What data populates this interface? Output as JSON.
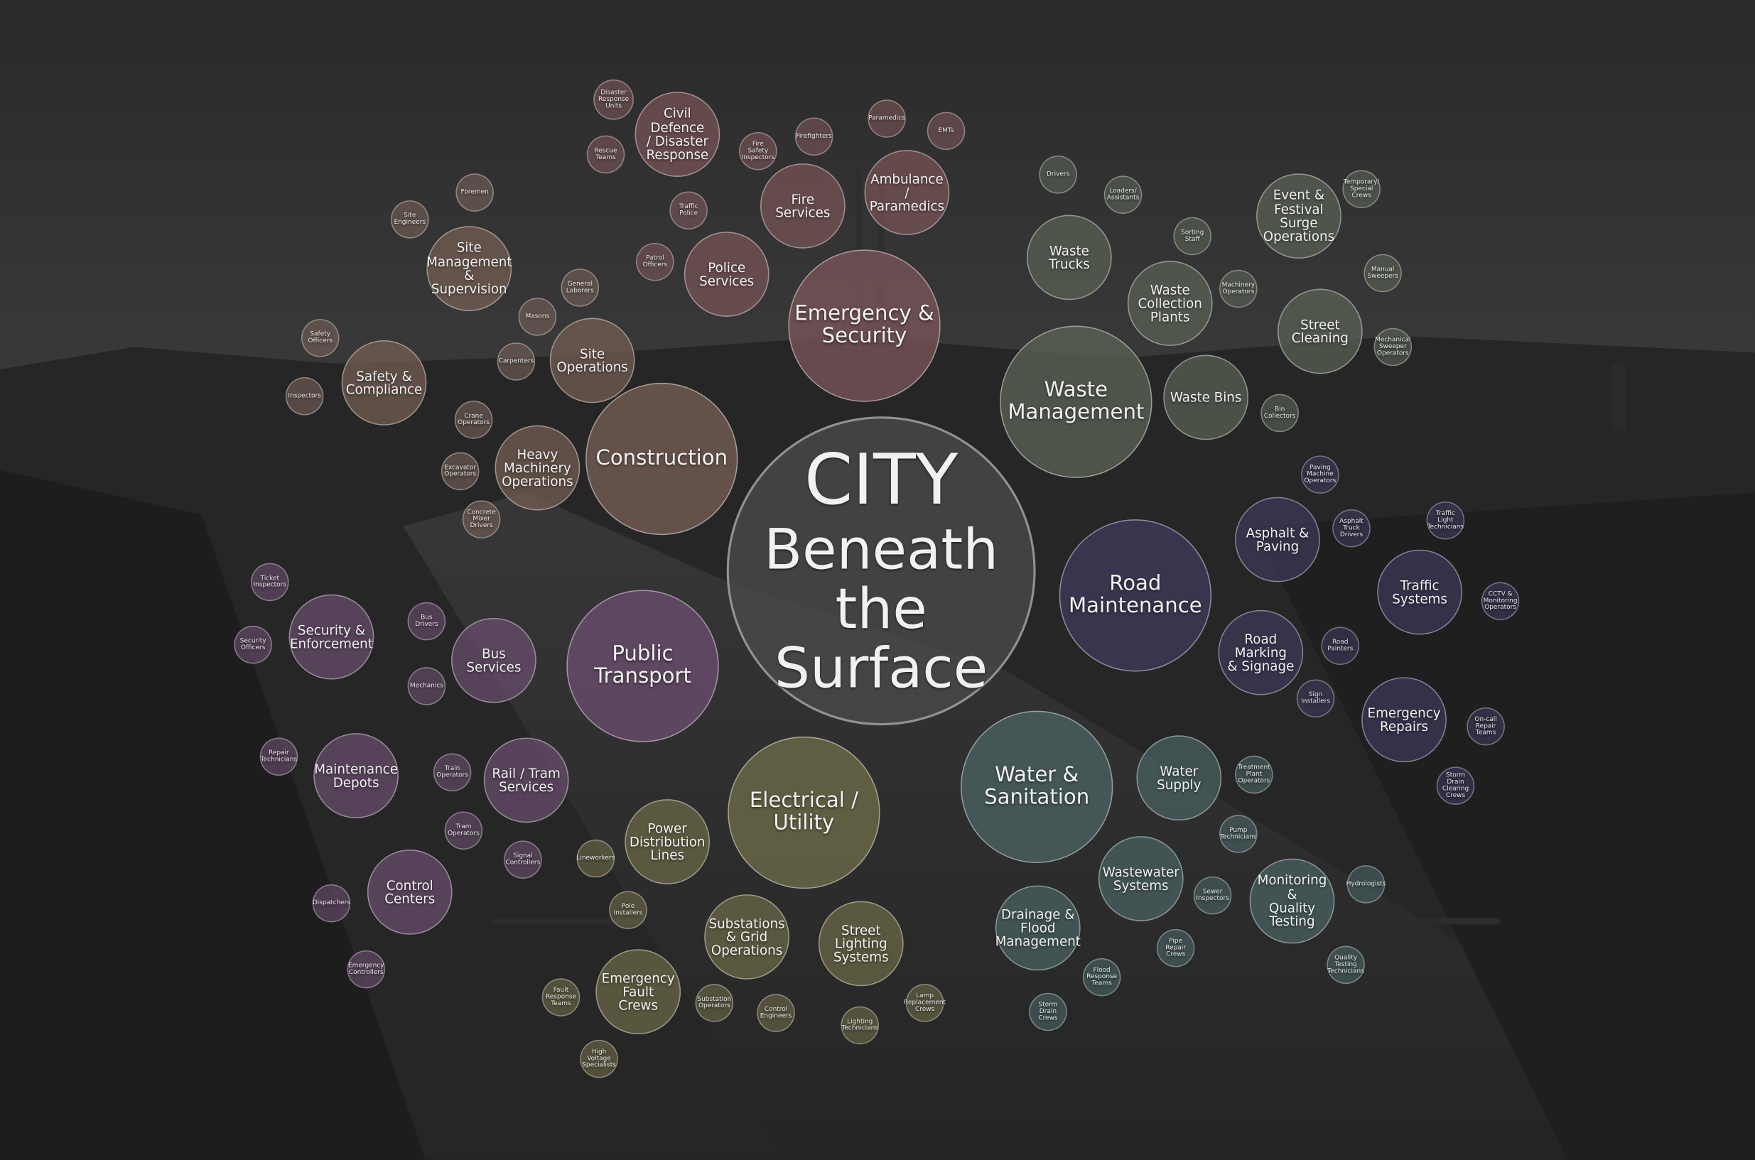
{
  "center": {
    "line1": "CITY",
    "line2": "Beneath the\nSurface"
  },
  "colors": {
    "center": "#4a4a4c",
    "emergency": "#7a5558",
    "waste": "#5b6256",
    "construction": "#765f55",
    "road": "#3d3a5a",
    "transport": "#6a4d6d",
    "electrical": "#6d6a48",
    "water": "#4a6262"
  },
  "categories": [
    {
      "id": "emergency",
      "label": "Emergency &\nSecurity",
      "groups": [
        {
          "label": "Civil Defence\n/ Disaster\nResponse",
          "roles": [
            "Disaster\nResponse\nUnits",
            "Rescue\nTeams"
          ]
        },
        {
          "label": "Fire Services",
          "roles": [
            "Fire Safety\nInspectors",
            "Firefighters"
          ]
        },
        {
          "label": "Ambulance /\nParamedics",
          "roles": [
            "Paramedics",
            "EMTs"
          ]
        },
        {
          "label": "Police Services",
          "roles": [
            "Traffic\nPolice",
            "Patrol\nOfficers"
          ]
        }
      ]
    },
    {
      "id": "waste",
      "label": "Waste\nManagement",
      "groups": [
        {
          "label": "Waste Trucks",
          "roles": [
            "Drivers",
            "Loaders/\nAssistants"
          ]
        },
        {
          "label": "Waste\nCollection\nPlants",
          "roles": [
            "Sorting Staff",
            "Machinery\nOperators"
          ]
        },
        {
          "label": "Event &\nFestival Surge\nOperations",
          "roles": [
            "Temporary/\nSpecial Crews"
          ]
        },
        {
          "label": "Street\nCleaning",
          "roles": [
            "Manual\nSweepers",
            "Mechanical\nSweeper\nOperators"
          ]
        },
        {
          "label": "Waste Bins",
          "roles": [
            "Bin Collectors"
          ]
        }
      ]
    },
    {
      "id": "construction",
      "label": "Construction",
      "groups": [
        {
          "label": "Site\nManagement\n& Supervision",
          "roles": [
            "Foremen",
            "Site\nEngineers"
          ]
        },
        {
          "label": "Site\nOperations",
          "roles": [
            "General\nLaborers",
            "Masons",
            "Carpenters"
          ]
        },
        {
          "label": "Safety &\nCompliance",
          "roles": [
            "Safety\nOfficers",
            "Inspectors"
          ]
        },
        {
          "label": "Heavy\nMachinery\nOperations",
          "roles": [
            "Crane\nOperators",
            "Excavator\nOperators",
            "Concrete\nMixer Drivers"
          ]
        }
      ]
    },
    {
      "id": "road",
      "label": "Road\nMaintenance",
      "groups": [
        {
          "label": "Asphalt &\nPaving",
          "roles": [
            "Paving\nMachine\nOperators",
            "Asphalt Truck\nDrivers"
          ]
        },
        {
          "label": "Traffic\nSystems",
          "roles": [
            "Traffic Light\nTechnicians",
            "CCTV &\nMonitoring\nOperators"
          ]
        },
        {
          "label": "Road Marking\n& Signage",
          "roles": [
            "Road Painters",
            "Sign Installers"
          ]
        },
        {
          "label": "Emergency\nRepairs",
          "roles": [
            "On-call\nRepair Teams",
            "Storm Drain\nClearing\nCrews"
          ]
        }
      ]
    },
    {
      "id": "transport",
      "label": "Public\nTransport",
      "groups": [
        {
          "label": "Security &\nEnforcement",
          "roles": [
            "Ticket\nInspectors",
            "Security\nOfficers"
          ]
        },
        {
          "label": "Bus Services",
          "roles": [
            "Bus Drivers",
            "Mechanics"
          ]
        },
        {
          "label": "Maintenance\nDepots",
          "roles": [
            "Repair\nTechnicians"
          ]
        },
        {
          "label": "Rail / Tram\nServices",
          "roles": [
            "Train\nOperators",
            "Tram\nOperators",
            "Signal\nControllers"
          ]
        },
        {
          "label": "Control\nCenters",
          "roles": [
            "Dispatchers",
            "Emergency\nControllers"
          ]
        }
      ]
    },
    {
      "id": "electrical",
      "label": "Electrical /\nUtility",
      "groups": [
        {
          "label": "Power\nDistribution\nLines",
          "roles": [
            "Lineworkers",
            "Pole Installers"
          ]
        },
        {
          "label": "Substations\n& Grid\nOperations",
          "roles": [
            "Substation\nOperators",
            "Control\nEngineers"
          ]
        },
        {
          "label": "Street\nLighting\nSystems",
          "roles": [
            "Lamp\nReplacement\nCrews",
            "Lighting\nTechnicians"
          ]
        },
        {
          "label": "Emergency\nFault Crews",
          "roles": [
            "Fault\nResponse\nTeams",
            "High Voltage\nSpecialists"
          ]
        }
      ]
    },
    {
      "id": "water",
      "label": "Water &\nSanitation",
      "groups": [
        {
          "label": "Water Supply",
          "roles": [
            "Treatment\nPlant\nOperators",
            "Pump\nTechnicians"
          ]
        },
        {
          "label": "Wastewater\nSystems",
          "roles": [
            "Sewer\nInspectors",
            "Pipe Repair\nCrews"
          ]
        },
        {
          "label": "Monitoring &\nQuality\nTesting",
          "roles": [
            "Hydrologists",
            "Quality\nTesting\nTechnicians"
          ]
        },
        {
          "label": "Drainage &\nFlood\nManagement",
          "roles": [
            "Flood\nResponse\nTeams",
            "Storm Drain\nCrews"
          ]
        }
      ]
    }
  ]
}
